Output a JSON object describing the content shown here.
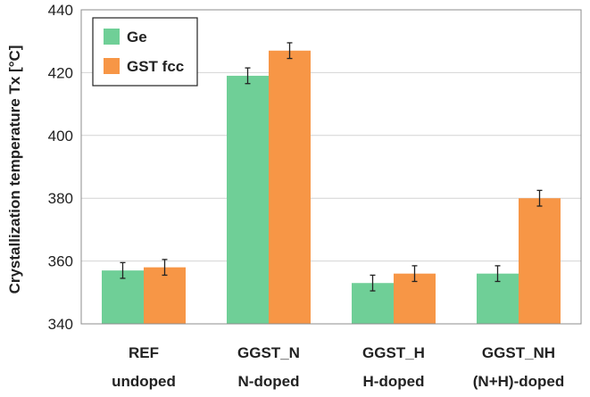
{
  "chart_data": {
    "type": "bar",
    "title": "",
    "xlabel": "",
    "ylabel": "Crystallization temperature Tx [°C]",
    "ylim": [
      340,
      440
    ],
    "yticks": [
      340,
      360,
      380,
      400,
      420,
      440
    ],
    "grid": "horizontal",
    "legend_position": "top-left",
    "categories": [
      {
        "line1": "REF",
        "line2": "undoped"
      },
      {
        "line1": "GGST_N",
        "line2": "N-doped"
      },
      {
        "line1": "GGST_H",
        "line2": "H-doped"
      },
      {
        "line1": "GGST_NH",
        "line2": "(N+H)-doped"
      }
    ],
    "series": [
      {
        "name": "Ge",
        "color": "#6fcf97",
        "values": [
          357,
          419,
          353,
          356
        ],
        "errors": [
          2.5,
          2.5,
          2.5,
          2.5
        ]
      },
      {
        "name": "GST fcc",
        "color": "#f79646",
        "values": [
          358,
          427,
          356,
          380
        ],
        "errors": [
          2.5,
          2.5,
          2.5,
          2.5
        ]
      }
    ]
  }
}
